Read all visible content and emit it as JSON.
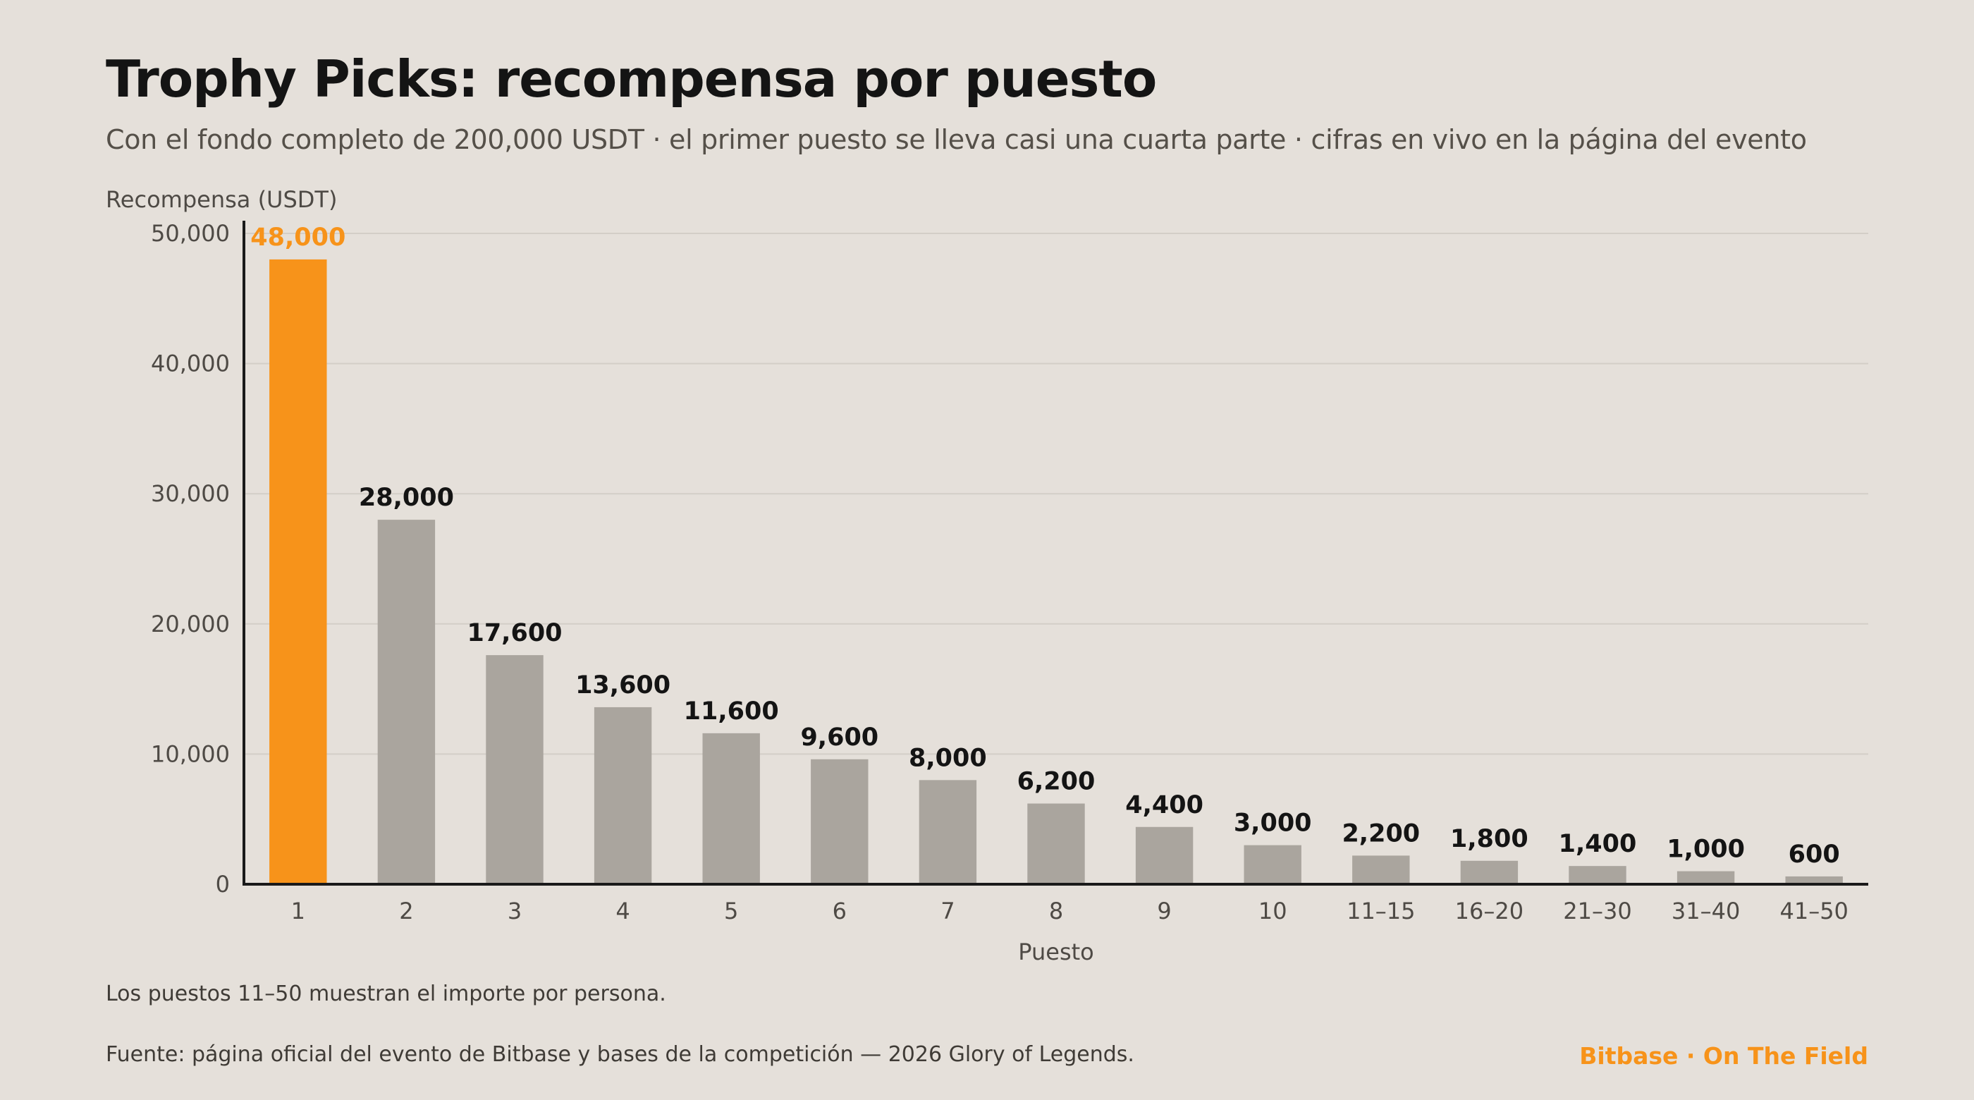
{
  "title": "Trophy Picks: recompensa por puesto",
  "subtitle": "Con el fondo completo de 200,000 USDT · el primer puesto se lleva casi una cuarta parte · cifras en vivo en la página del evento",
  "note": "Los puestos 11–50 muestran el importe por persona.",
  "source": "Fuente: página oficial del evento de Bitbase y bases de la competición — 2026 Glory of Legends.",
  "brand": "Bitbase · On The Field",
  "colors": {
    "highlight": "#f7931a",
    "bar": "#aaa59e",
    "background": "#e5e0da",
    "grid": "#d3cec7",
    "axis": "#1a1a1a"
  },
  "chart_data": {
    "type": "bar",
    "ylabel": "Recompensa (USDT)",
    "xlabel": "Puesto",
    "ylim": [
      0,
      50000
    ],
    "yticks": [
      0,
      10000,
      20000,
      30000,
      40000,
      50000
    ],
    "ytick_labels": [
      "0",
      "10,000",
      "20,000",
      "30,000",
      "40,000",
      "50,000"
    ],
    "grid": true,
    "highlight_index": 0,
    "categories": [
      "1",
      "2",
      "3",
      "4",
      "5",
      "6",
      "7",
      "8",
      "9",
      "10",
      "11–15",
      "16–20",
      "21–30",
      "31–40",
      "41–50"
    ],
    "values": [
      48000,
      28000,
      17600,
      13600,
      11600,
      9600,
      8000,
      6200,
      4400,
      3000,
      2200,
      1800,
      1400,
      1000,
      600
    ],
    "value_labels": [
      "48,000",
      "28,000",
      "17,600",
      "13,600",
      "11,600",
      "9,600",
      "8,000",
      "6,200",
      "4,400",
      "3,000",
      "2,200",
      "1,800",
      "1,400",
      "1,000",
      "600"
    ]
  }
}
